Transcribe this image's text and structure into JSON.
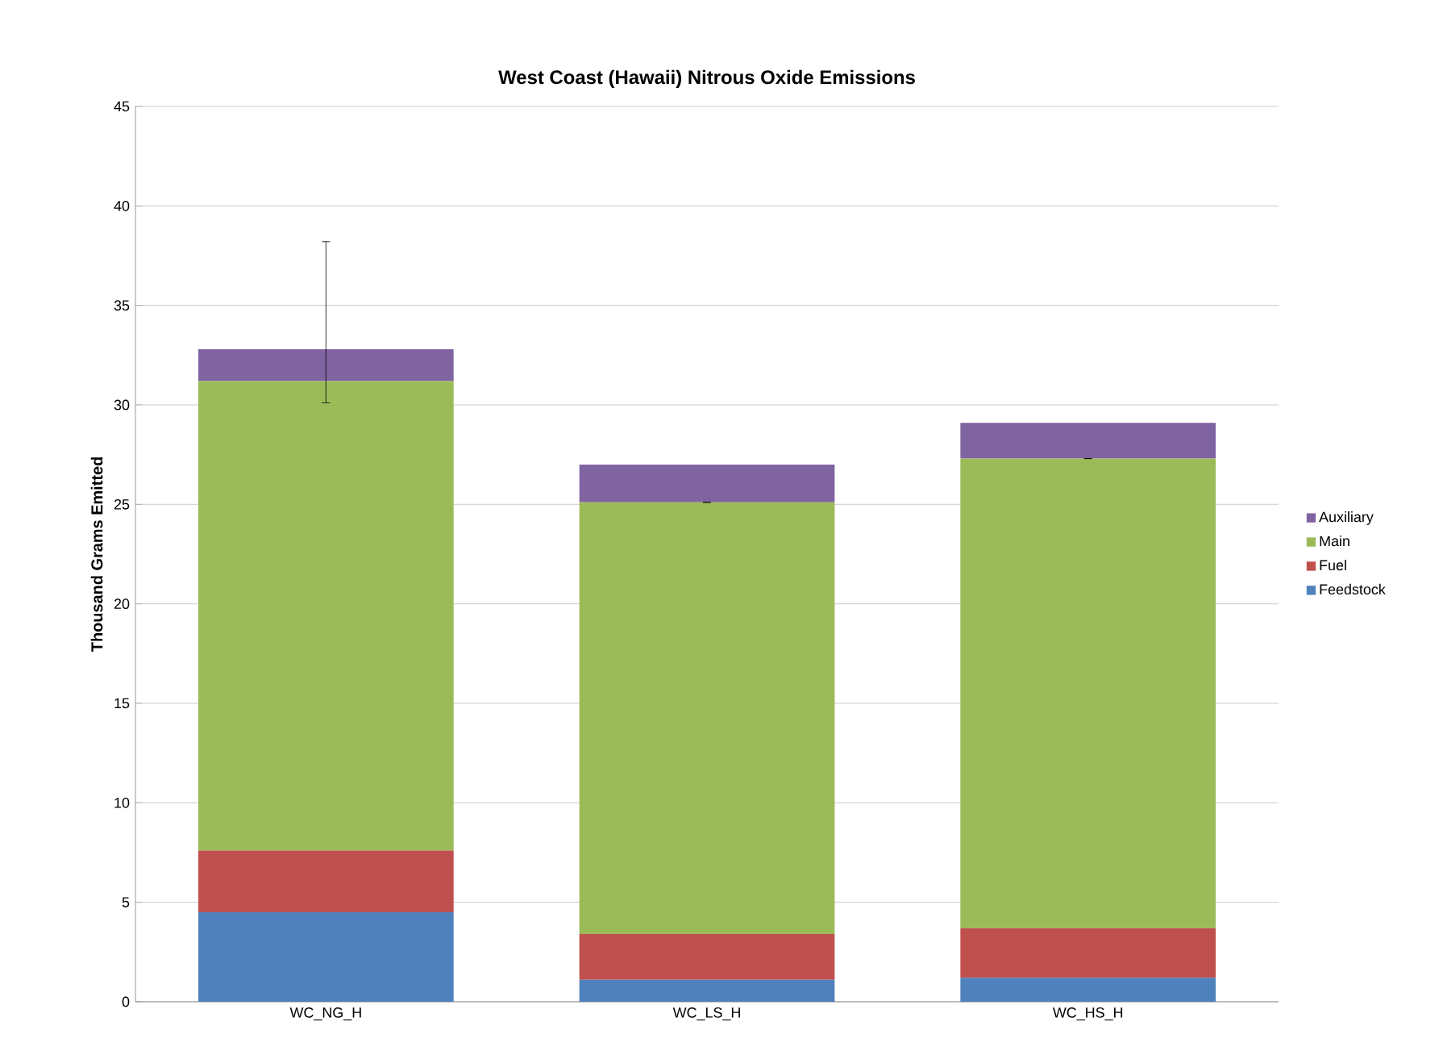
{
  "chart_data": {
    "type": "bar",
    "stacked": true,
    "title": "West Coast (Hawaii) Nitrous Oxide Emissions",
    "ylabel": "Thousand Grams Emitted",
    "categories": [
      "WC_NG_H",
      "WC_LS_H",
      "WC_HS_H"
    ],
    "series": [
      {
        "name": "Feedstock",
        "color": "#4f81bd",
        "values": [
          4.5,
          1.1,
          1.2
        ]
      },
      {
        "name": "Fuel",
        "color": "#c0504d",
        "values": [
          3.1,
          2.3,
          2.5
        ]
      },
      {
        "name": "Main",
        "color": "#9bbb59",
        "values": [
          23.6,
          21.7,
          23.6
        ],
        "errors": [
          [
            30.1,
            38.2
          ],
          0,
          0
        ]
      },
      {
        "name": "Auxiliary",
        "color": "#8064a2",
        "values": [
          1.6,
          1.9,
          1.8
        ]
      }
    ],
    "ylim": [
      0,
      45
    ],
    "yticks": [
      0,
      5,
      10,
      15,
      20,
      25,
      30,
      35,
      40,
      45
    ],
    "grid": "y",
    "legend": "right"
  }
}
